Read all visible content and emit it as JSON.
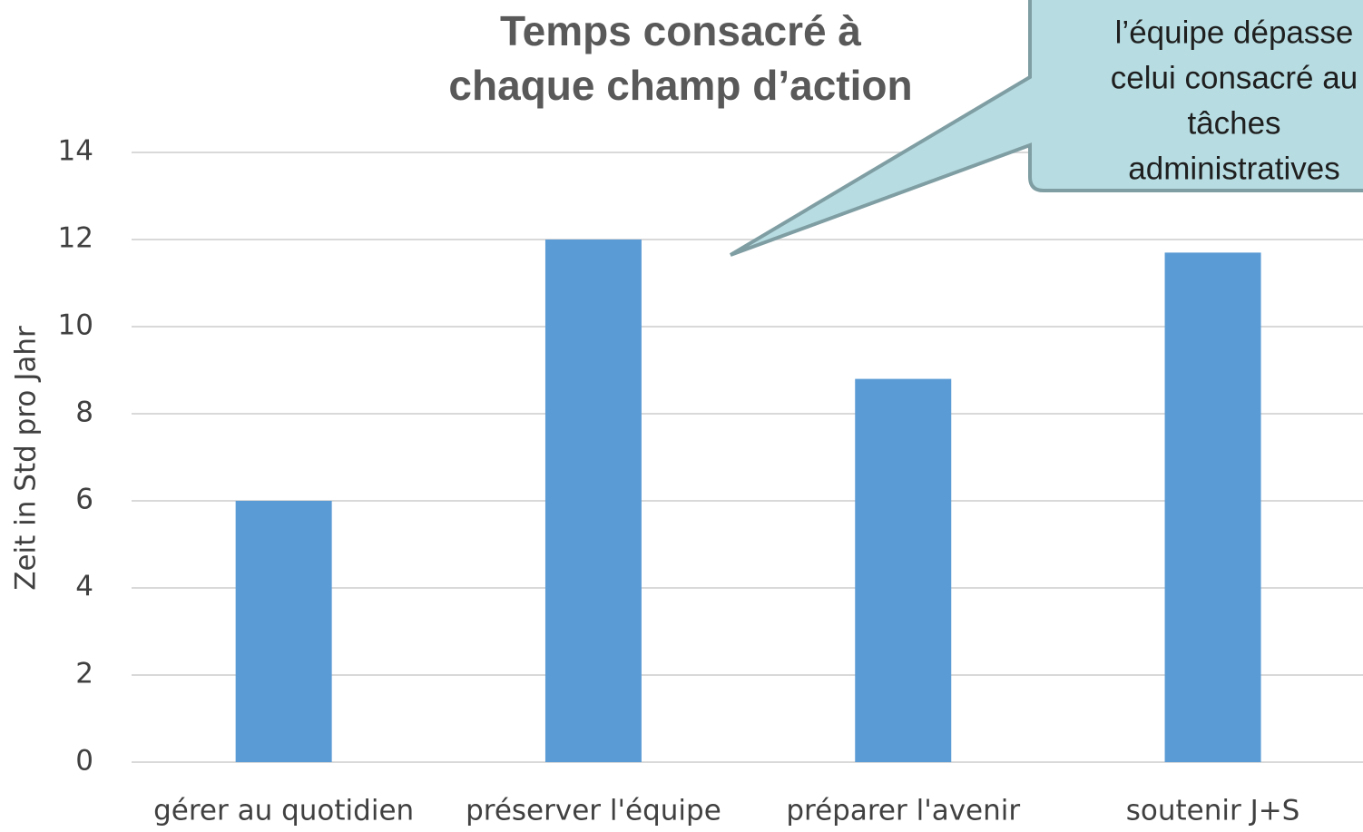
{
  "chart_data": {
    "type": "bar",
    "title_lines": [
      "Temps consacré à",
      "chaque champ d’action"
    ],
    "ylabel": "Zeit in Std pro Jahr",
    "categories": [
      "gérer au quotidien",
      "préserver l'équipe",
      "préparer l'avenir",
      "soutenir J+S"
    ],
    "values": [
      6,
      12,
      8.8,
      11.7
    ],
    "color": "#5b9bd5",
    "ylim": [
      0,
      14
    ],
    "yticks": [
      0,
      2,
      4,
      6,
      8,
      10,
      12,
      14
    ],
    "grid": true,
    "annotation_lines": [
      "l’équipe dépasse",
      "celui consacré au",
      "tâches",
      "administratives"
    ]
  }
}
